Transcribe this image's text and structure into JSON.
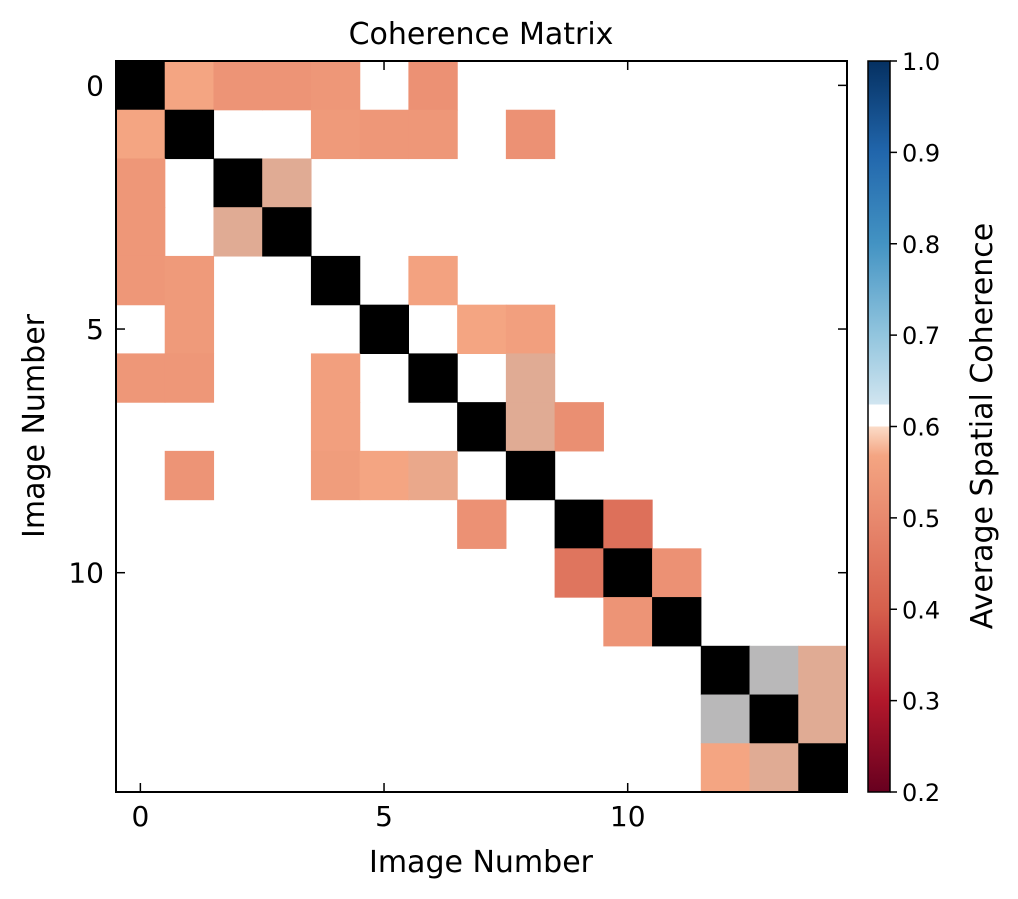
{
  "chart_data": {
    "type": "heatmap",
    "title": "Coherence Matrix",
    "xlabel": "Image Number",
    "ylabel": "Image Number",
    "size": 15,
    "x_ticks": [
      0,
      5,
      10
    ],
    "y_ticks": [
      0,
      5,
      10
    ],
    "x_tick_labels": [
      "0",
      "5",
      "10"
    ],
    "y_tick_labels": [
      "0",
      "5",
      "10"
    ],
    "diagonal_color": "#000000",
    "missing_color": "#ffffff",
    "colorbar": {
      "label": "Average Spatial Coherence",
      "range": [
        0.2,
        1.0
      ],
      "ticks": [
        0.2,
        0.3,
        0.4,
        0.5,
        0.6,
        0.7,
        0.8,
        0.9,
        1.0
      ],
      "tick_labels": [
        "0.2",
        "0.3",
        "0.4",
        "0.5",
        "0.6",
        "0.7",
        "0.8",
        "0.9",
        "1.0"
      ],
      "colormap": "RdBu",
      "blank_band": [
        0.7,
        0.73
      ]
    },
    "matrix": [
      [
        null,
        0.6,
        0.54,
        0.54,
        0.55,
        null,
        0.53,
        null,
        null,
        null,
        null,
        null,
        null,
        null,
        null
      ],
      [
        0.6,
        null,
        null,
        null,
        0.56,
        0.55,
        0.55,
        null,
        0.53,
        null,
        null,
        null,
        null,
        null,
        null
      ],
      [
        0.55,
        null,
        null,
        0.62,
        null,
        null,
        null,
        null,
        null,
        null,
        null,
        null,
        null,
        null,
        null
      ],
      [
        0.55,
        null,
        0.62,
        null,
        null,
        null,
        null,
        null,
        null,
        null,
        null,
        null,
        null,
        null,
        null
      ],
      [
        0.55,
        0.56,
        null,
        null,
        null,
        null,
        0.59,
        null,
        null,
        null,
        null,
        null,
        null,
        null,
        null
      ],
      [
        null,
        0.56,
        null,
        null,
        null,
        null,
        null,
        0.6,
        0.58,
        null,
        null,
        null,
        null,
        null,
        null
      ],
      [
        0.55,
        0.55,
        null,
        null,
        0.58,
        null,
        null,
        null,
        0.62,
        null,
        null,
        null,
        null,
        null,
        null
      ],
      [
        null,
        null,
        null,
        null,
        0.58,
        null,
        null,
        null,
        0.62,
        0.52,
        null,
        null,
        null,
        null,
        null
      ],
      [
        null,
        0.54,
        null,
        null,
        0.57,
        0.6,
        0.61,
        null,
        null,
        null,
        null,
        null,
        null,
        null,
        null
      ],
      [
        null,
        null,
        null,
        null,
        null,
        null,
        null,
        0.53,
        null,
        null,
        0.44,
        null,
        null,
        null,
        null
      ],
      [
        null,
        null,
        null,
        null,
        null,
        null,
        null,
        null,
        null,
        0.45,
        null,
        0.53,
        null,
        null,
        null
      ],
      [
        null,
        null,
        null,
        null,
        null,
        null,
        null,
        null,
        null,
        null,
        0.54,
        null,
        null,
        null,
        null
      ],
      [
        null,
        null,
        null,
        null,
        null,
        null,
        null,
        null,
        null,
        null,
        null,
        null,
        null,
        0.66,
        0.62
      ],
      [
        null,
        null,
        null,
        null,
        null,
        null,
        null,
        null,
        null,
        null,
        null,
        null,
        0.66,
        null,
        0.62
      ],
      [
        null,
        null,
        null,
        null,
        null,
        null,
        null,
        null,
        null,
        null,
        null,
        null,
        0.6,
        0.62,
        null
      ]
    ]
  }
}
